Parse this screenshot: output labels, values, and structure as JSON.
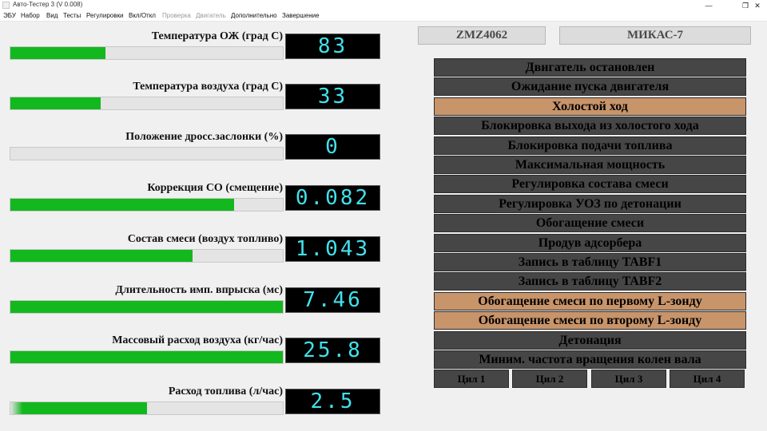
{
  "window": {
    "title": "Авто-Тестер 3  (V 0.008)",
    "controls": {
      "minimize": "—",
      "maximize": "❐",
      "close": "✕"
    }
  },
  "menu": [
    {
      "label": "ЭБУ",
      "enabled": true
    },
    {
      "label": "Набор",
      "enabled": true
    },
    {
      "label": "Вид",
      "enabled": true
    },
    {
      "label": "Тесты",
      "enabled": true
    },
    {
      "label": "Регулировки",
      "enabled": true
    },
    {
      "label": "Вкл/Откл",
      "enabled": true
    },
    {
      "label": "Проверка",
      "enabled": false
    },
    {
      "label": "Двигатель",
      "enabled": false
    },
    {
      "label": "Дополнительно",
      "enabled": true
    },
    {
      "label": "Завершение",
      "enabled": true
    }
  ],
  "sensors": [
    {
      "label": "Температура ОЖ (град С)",
      "value": "83",
      "fill": 0.35
    },
    {
      "label": "Температура воздуха (град С)",
      "value": "33",
      "fill": 0.33
    },
    {
      "label": "Положение дросс.заслонки (%)",
      "value": "0",
      "fill": 0.0
    },
    {
      "label": "Коррекция СО (смещение)",
      "value": "0.082",
      "fill": 0.82
    },
    {
      "label": "Состав смеси (воздух топливо)",
      "value": "1.043",
      "fill": 0.67
    },
    {
      "label": "Длительность имп. впрыска (мс)",
      "value": "7.46",
      "fill": 1.0
    },
    {
      "label": "Массовый расход воздуха (кг/час)",
      "value": "25.8",
      "fill": 1.0
    },
    {
      "label": "Расход топлива (л/час)",
      "value": "2.5",
      "fill": 0.5
    }
  ],
  "engine_model": "ZMZ4062",
  "ecu_model": "МИКАС-7",
  "states": [
    {
      "label": "Двигатель остановлен",
      "active": false
    },
    {
      "label": "Ожидание пуска двигателя",
      "active": false
    },
    {
      "label": "Холостой ход",
      "active": true
    },
    {
      "label": "Блокировка выхода из холостого хода",
      "active": false
    },
    {
      "label": "Блокировка подачи топлива",
      "active": false
    },
    {
      "label": "Максимальная мощность",
      "active": false
    },
    {
      "label": "Регулировка состава смеси",
      "active": false
    },
    {
      "label": "Регулировка УОЗ по детонации",
      "active": false
    },
    {
      "label": "Обогащение смеси",
      "active": false
    },
    {
      "label": "Продув адсорбера",
      "active": false
    },
    {
      "label": "Запись в таблицу TABF1",
      "active": false
    },
    {
      "label": "Запись в таблицу TABF2",
      "active": false
    },
    {
      "label": "Обогащение смеси по первому L-зонду",
      "active": true
    },
    {
      "label": "Обогащение смеси по второму L-зонду",
      "active": true
    },
    {
      "label": "Детонация",
      "active": false
    },
    {
      "label": "Миним. частота вращения колен вала",
      "active": false
    }
  ],
  "cylinders": [
    "Цил 1",
    "Цил 2",
    "Цил 3",
    "Цил 4"
  ],
  "colors": {
    "bar_fill": "#12b81e",
    "display_text": "#40e2ec",
    "state_active": "#c8946a",
    "state_inactive": "#464646"
  }
}
